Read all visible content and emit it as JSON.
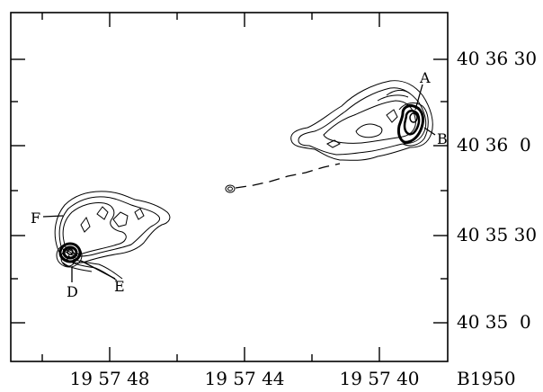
{
  "chart_data": {
    "type": "contour",
    "xlabel": "B1950",
    "x_tick_labels": [
      "19 57 48",
      "19 57 44",
      "19 57 40"
    ],
    "y_tick_labels": [
      "40 36 30",
      "40 36  0",
      "40 35 30",
      "40 35  0"
    ],
    "components": [
      {
        "label": "A"
      },
      {
        "label": "B"
      },
      {
        "label": "D"
      },
      {
        "label": "E"
      },
      {
        "label": "F"
      }
    ]
  }
}
